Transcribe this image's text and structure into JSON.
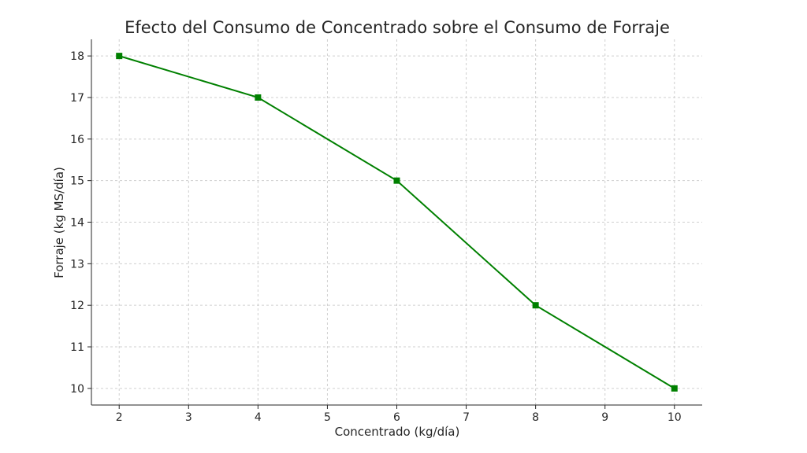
{
  "chart_data": {
    "type": "line",
    "title": "Efecto del Consumo de Concentrado sobre el Consumo de Forraje",
    "xlabel": "Concentrado (kg/día)",
    "ylabel": "Forraje (kg MS/día)",
    "x": [
      2,
      4,
      6,
      8,
      10
    ],
    "series": [
      {
        "values": [
          18,
          17,
          15,
          12,
          10
        ]
      }
    ],
    "xlim": [
      1.6,
      10.4
    ],
    "ylim": [
      9.6,
      18.4
    ],
    "xticks": [
      2,
      3,
      4,
      5,
      6,
      7,
      8,
      9,
      10
    ],
    "yticks": [
      10,
      11,
      12,
      13,
      14,
      15,
      16,
      17,
      18
    ],
    "grid": true,
    "line_color": "#008000",
    "marker": "square"
  }
}
